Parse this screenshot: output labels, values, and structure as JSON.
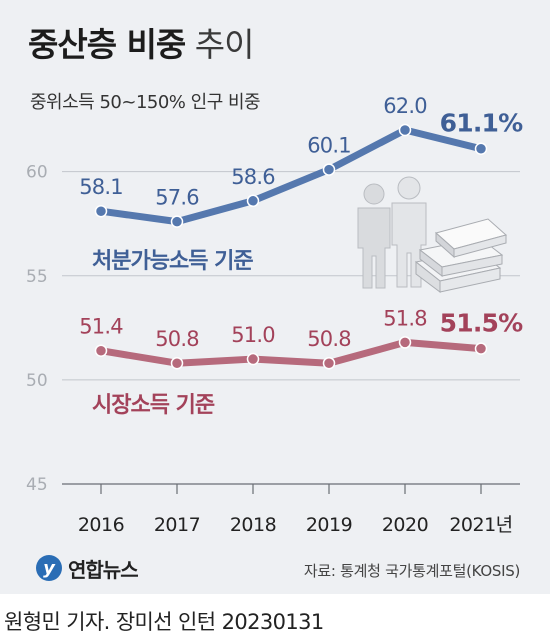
{
  "header": {
    "title_bold": "중산층 비중",
    "title_light": "추이",
    "subtitle": "중위소득 50~150% 인구 비중"
  },
  "chart_data": {
    "type": "line",
    "categories": [
      "2016",
      "2017",
      "2018",
      "2019",
      "2020",
      "2021년"
    ],
    "ylim": [
      45,
      62
    ],
    "yticks": [
      45,
      50,
      55,
      60
    ],
    "grid": true,
    "series": [
      {
        "name": "처분가능소득 기준",
        "values": [
          58.1,
          57.6,
          58.6,
          60.1,
          62.0,
          61.1
        ],
        "labels": [
          "58.1",
          "57.6",
          "58.6",
          "60.1",
          "62.0",
          "61.1%"
        ],
        "color": "#5578ae",
        "label_color": "#3f5f96"
      },
      {
        "name": "시장소득 기준",
        "values": [
          51.4,
          50.8,
          51.0,
          50.8,
          51.8,
          51.5
        ],
        "labels": [
          "51.4",
          "50.8",
          "51.0",
          "50.8",
          "51.8",
          "51.5%"
        ],
        "color": "#b66a7c",
        "label_color": "#a3425a"
      }
    ]
  },
  "footer": {
    "logo_mark": "y",
    "logo_text": "연합뉴스",
    "source": "자료: 통계청 국가통계포털(KOSIS)",
    "credit": "원형민 기자. 장미선 인턴  20230131"
  }
}
